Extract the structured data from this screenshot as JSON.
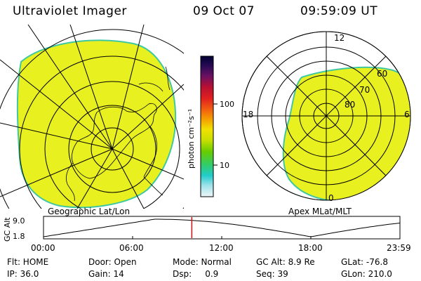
{
  "header": {
    "title": "Ultraviolet Imager",
    "date": "09 Oct 07",
    "time": "09:59:09 UT"
  },
  "left_panel": {
    "label": "Geographic Lat/Lon"
  },
  "right_panel": {
    "label": "Apex MLat/MLT",
    "mlt_labels": {
      "top": "12",
      "left": "18",
      "right": "6",
      "bottom": "0"
    },
    "mlat_labels": [
      "60",
      "70",
      "80"
    ]
  },
  "colorbar": {
    "unit_label": "photon cm⁻²s⁻¹",
    "ticks": [
      "100",
      "10"
    ],
    "colors": [
      "#000033",
      "#1a0a4a",
      "#3a0c6a",
      "#7a1060",
      "#c01030",
      "#e02020",
      "#f05a10",
      "#f59a00",
      "#f5e000",
      "#cce000",
      "#66cc00",
      "#33cc66",
      "#22cccc",
      "#99e0e8",
      "#e0f0f4"
    ]
  },
  "timeline": {
    "axis_label": "GC Alt",
    "y_ticks": [
      "9.0",
      "1.8"
    ],
    "x_ticks": [
      "00:00",
      "06:00",
      "12:00",
      "18:00",
      "23:59"
    ],
    "current_hour": 9.986
  },
  "status": {
    "flt": "Flt: HOME",
    "ip": "IP: 36.0",
    "door": "Door: Open",
    "gain": "Gain: 14",
    "mode": "Mode: Normal",
    "dsp": "Dsp:     0.9",
    "gcalt": "GC Alt: 8.9 Re",
    "seq": "Seq: 39",
    "glat": "GLat: -76.8",
    "glon": "GLon: 210.0"
  },
  "colors": {
    "aurora": "#e9f020",
    "edge": "#3fc8a0",
    "marker": "#d01010"
  }
}
